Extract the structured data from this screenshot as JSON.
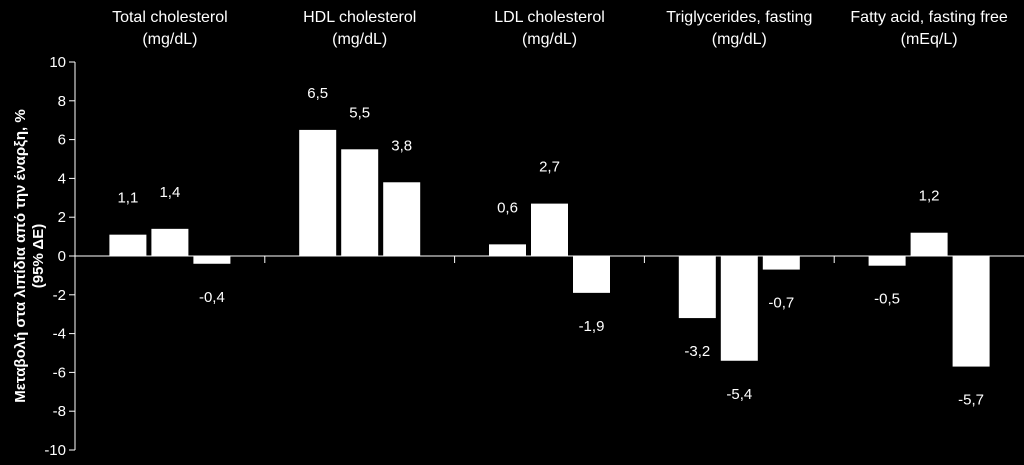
{
  "chart_data": {
    "type": "bar",
    "categories": [
      [
        "Total cholesterol",
        "(mg/dL)"
      ],
      [
        "HDL cholesterol",
        "(mg/dL)"
      ],
      [
        "LDL cholesterol",
        "(mg/dL)"
      ],
      [
        "Triglycerides, fasting",
        "(mg/dL)"
      ],
      [
        "Fatty acid, fasting free",
        "(mEq/L)"
      ]
    ],
    "series": [
      {
        "values": [
          1.1,
          6.5,
          0.6,
          -3.2,
          -0.5
        ]
      },
      {
        "values": [
          1.4,
          5.5,
          2.7,
          -5.4,
          1.2
        ]
      },
      {
        "values": [
          -0.4,
          3.8,
          -1.9,
          -0.7,
          -5.7
        ]
      }
    ],
    "data_labels": [
      [
        "1,1",
        "6,5",
        "0,6",
        "-3,2",
        "-0,5"
      ],
      [
        "1,4",
        "5,5",
        "2,7",
        "-5,4",
        "1,2"
      ],
      [
        "-0,4",
        "3,8",
        "-1,9",
        "-0,7",
        "-5,7"
      ]
    ],
    "ylabel": [
      "Μεταβολή στα λιπίδια από την έναρξη, %",
      "(95% ΔΕ)"
    ],
    "ylim": [
      -10,
      10
    ],
    "yticks": [
      10,
      8,
      6,
      4,
      2,
      0,
      -2,
      -4,
      -6,
      -8,
      -10
    ],
    "bar_color": "#ffffff",
    "background_color": "#000000",
    "axis_color": "#ffffff"
  }
}
